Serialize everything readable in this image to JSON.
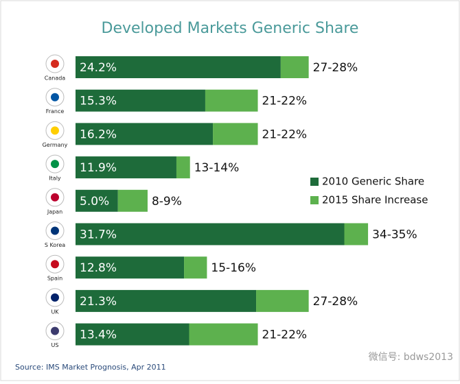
{
  "chart_data": {
    "type": "stacked-bar-horizontal",
    "title": "Developed Markets Generic Share",
    "categories": [
      "Canada",
      "France",
      "Germany",
      "Italy",
      "Japan",
      "S Korea",
      "Spain",
      "UK",
      "US"
    ],
    "series": [
      {
        "name": "2010 Generic Share",
        "color": "#1e6b3a",
        "values": [
          24.2,
          15.3,
          16.2,
          11.9,
          5.0,
          31.7,
          12.8,
          21.3,
          13.4
        ],
        "value_labels": [
          "24.2%",
          "15.3%",
          "16.2%",
          "11.9%",
          "5.0%",
          "31.7%",
          "12.8%",
          "21.3%",
          "13.4%"
        ]
      },
      {
        "name": "2015 Share Increase",
        "color": "#5db14e",
        "values": [
          3.3,
          6.2,
          5.3,
          1.6,
          3.5,
          2.8,
          2.7,
          6.2,
          8.1
        ]
      }
    ],
    "total_labels": [
      "27-28%",
      "21-22%",
      "21-22%",
      "13-14%",
      "8-9%",
      "34-35%",
      "15-16%",
      "27-28%",
      "21-22%"
    ],
    "source": "Source: IMS Market Prognosis, Apr 2011",
    "watermark": "微信号: bdws2013"
  }
}
